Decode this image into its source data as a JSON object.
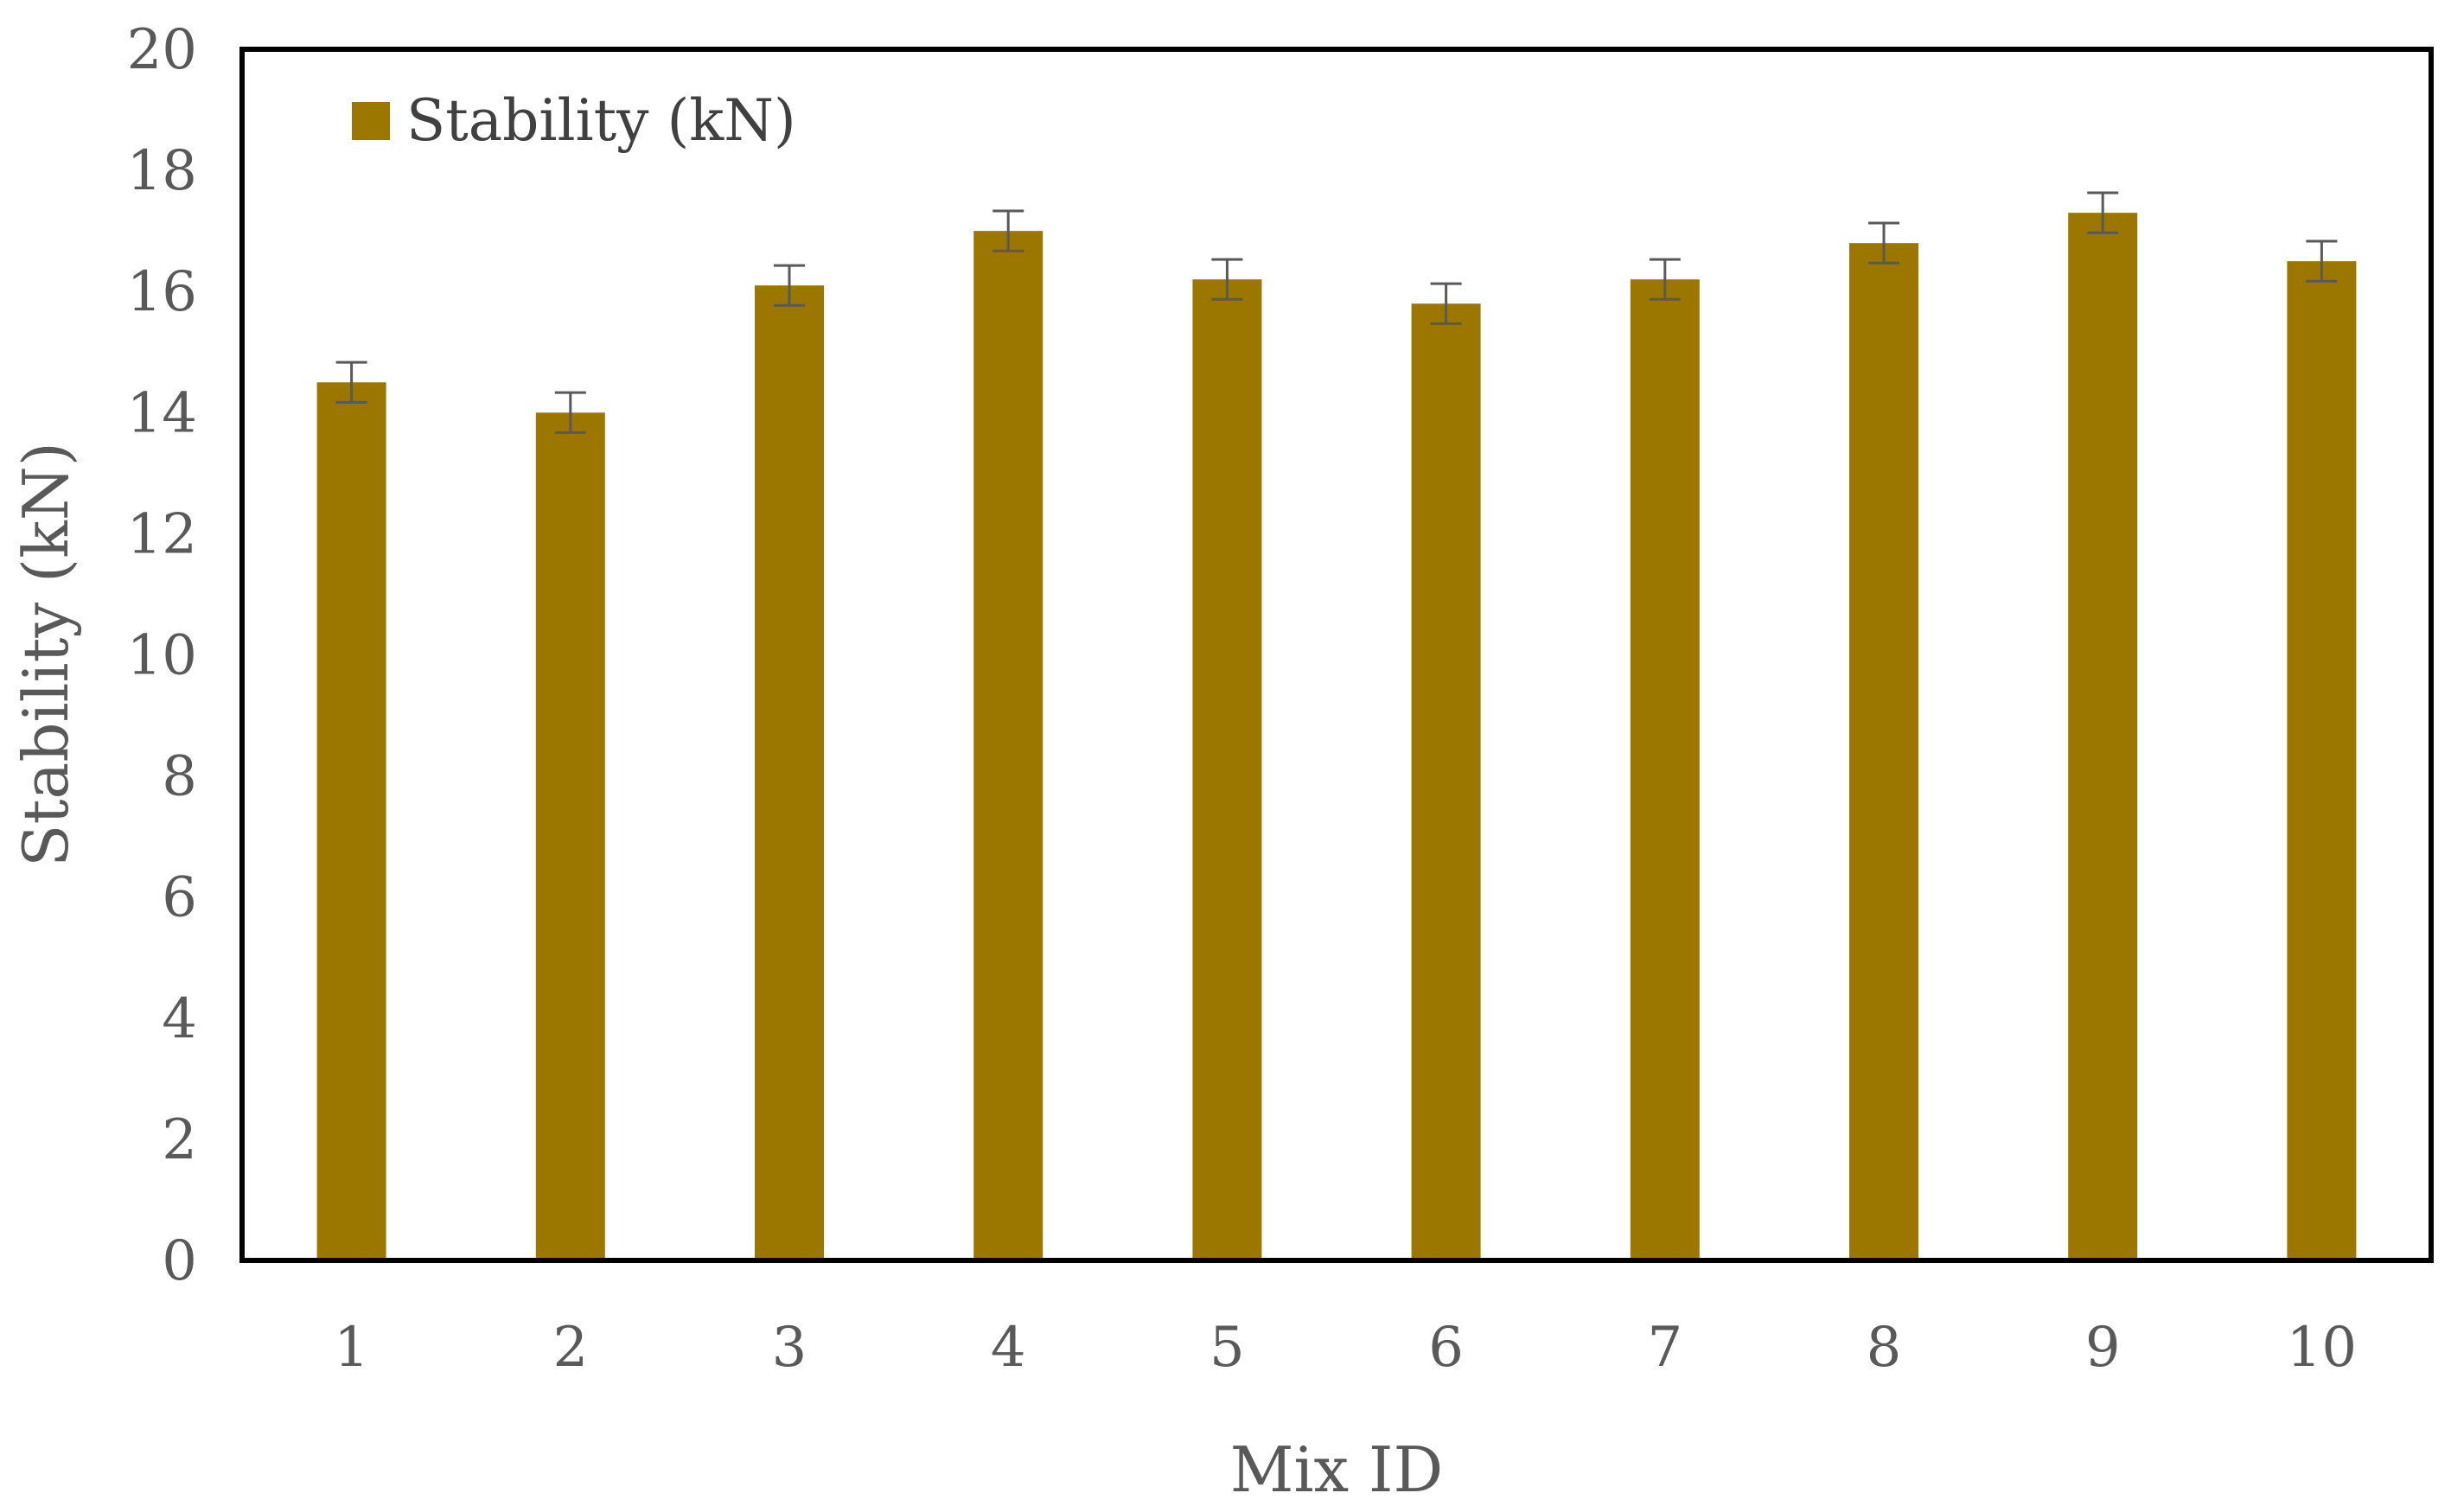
{
  "chart_data": {
    "type": "bar",
    "title": "",
    "xlabel": "Mix ID",
    "ylabel": "Stability (kN)",
    "ylim": [
      0,
      20
    ],
    "y_ticks": [
      "0",
      "2",
      "4",
      "6",
      "8",
      "10",
      "12",
      "14",
      "16",
      "18",
      "20"
    ],
    "categories": [
      "1",
      "2",
      "3",
      "4",
      "5",
      "6",
      "7",
      "8",
      "9",
      "10"
    ],
    "series": [
      {
        "name": "Stability (kN)",
        "color": "#9C7700",
        "values": [
          14.5,
          14.0,
          16.1,
          17.0,
          16.2,
          15.8,
          16.2,
          16.8,
          17.3,
          16.5
        ],
        "error": [
          0.33,
          0.33,
          0.33,
          0.33,
          0.33,
          0.33,
          0.33,
          0.33,
          0.33,
          0.33
        ]
      }
    ],
    "grid": false,
    "legend_position": "top-left",
    "error_bar_color": "#595959"
  }
}
